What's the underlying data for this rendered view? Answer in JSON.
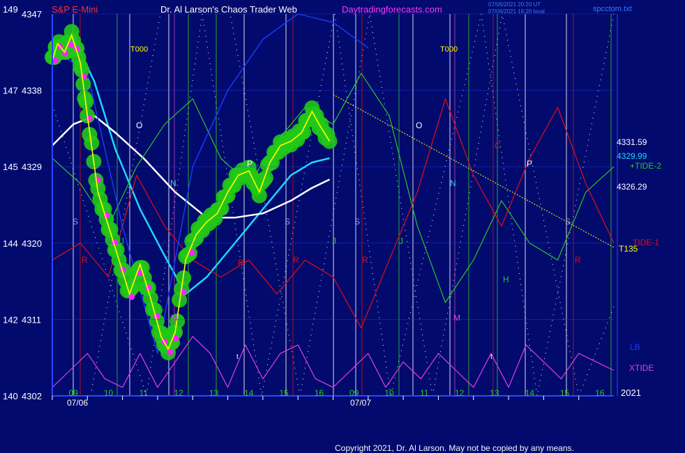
{
  "header": {
    "instrument": "S&P E-Mini",
    "author": "Dr. Al Larson's Chaos Trader Web",
    "site": "Daytradingforecasts.com",
    "timestamp_line1": "07/06/2021 20:20 UT",
    "timestamp_line2": "07/06/2021 16:20 local",
    "file": "spcctom.txt"
  },
  "copyright": "Copyright 2021, Dr. Al Larson. May not be copied by any means.",
  "colors": {
    "background": "#020a6e",
    "price_line": "#ffff00",
    "cyan_ma": "#1fd7ff",
    "white_ma": "#ffffff",
    "tide1": "#e01010",
    "tide2": "#28c828",
    "xtide": "#e040e0",
    "lb": "#1a3cff",
    "trend": "#ffff00",
    "green_glow": "#22c818",
    "magenta_dot": "#ff22ff"
  },
  "chart_data": {
    "type": "line",
    "title": "S&P E-Mini",
    "y_left_outer_ticks": [
      "149",
      "147",
      "145",
      "144",
      "142",
      "140"
    ],
    "y_left_inner_ticks": [
      4347,
      4338,
      4329,
      4320,
      4311,
      4302
    ],
    "ylim": [
      4302,
      4347
    ],
    "hour_ticks": [
      "09",
      "10",
      "11",
      "12",
      "13",
      "14",
      "15",
      "16",
      "09",
      "10",
      "11",
      "12",
      "13",
      "14",
      "15",
      "16"
    ],
    "date_labels": [
      "07/06",
      "07/07"
    ],
    "year_label": "2021",
    "value_labels": [
      {
        "text": "4331.59",
        "color": "#ffffff"
      },
      {
        "text": "4329.99",
        "color": "#1fd7ff"
      },
      {
        "text": "4326.29",
        "color": "#ffffff"
      }
    ],
    "legend": [
      {
        "label": "+TIDE-2",
        "color": "#28c828"
      },
      {
        "label": "TIDE-1",
        "color": "#e01010"
      },
      {
        "label": "T135",
        "color": "#ffff00"
      },
      {
        "label": "LB",
        "color": "#1a3cff"
      },
      {
        "label": "XTIDE",
        "color": "#e040e0"
      }
    ],
    "markers": [
      {
        "text": "T000",
        "color": "#ffff00"
      },
      {
        "text": "T000",
        "color": "#ffff00"
      },
      {
        "text": "O",
        "color": "#ffffff"
      },
      {
        "text": "O",
        "color": "#ffffff"
      },
      {
        "text": "P",
        "color": "#ffffff"
      },
      {
        "text": "P",
        "color": "#ffffff"
      },
      {
        "text": "N",
        "color": "#1fd7ff"
      },
      {
        "text": "N",
        "color": "#1fd7ff"
      },
      {
        "text": "S",
        "color": "#8a9cff"
      },
      {
        "text": "S",
        "color": "#8a9cff"
      },
      {
        "text": "S",
        "color": "#8a9cff"
      },
      {
        "text": "S",
        "color": "#8a9cff"
      },
      {
        "text": "J",
        "color": "#28c828"
      },
      {
        "text": "J",
        "color": "#28c828"
      },
      {
        "text": "J",
        "color": "#28c828"
      },
      {
        "text": "R",
        "color": "#e01010"
      },
      {
        "text": "R",
        "color": "#e01010"
      },
      {
        "text": "R",
        "color": "#e01010"
      },
      {
        "text": "R",
        "color": "#e01010"
      },
      {
        "text": "R",
        "color": "#e01010"
      },
      {
        "text": "C",
        "color": "#e01010"
      },
      {
        "text": "M",
        "color": "#e040e0"
      },
      {
        "text": "M",
        "color": "#e040e0"
      },
      {
        "text": "H",
        "color": "#28c828"
      },
      {
        "text": "t",
        "color": "#ffffff"
      },
      {
        "text": "t",
        "color": "#ffffff"
      }
    ],
    "price_series": {
      "name": "ES price",
      "x": [
        0.0,
        0.15,
        0.35,
        0.55,
        0.8,
        1.0,
        1.3,
        1.6,
        1.9,
        2.2,
        2.5,
        2.8,
        3.1,
        3.3,
        3.5,
        3.8,
        4.1,
        4.4,
        4.7,
        5.0,
        5.3,
        5.6,
        5.9,
        6.2,
        6.5,
        6.8,
        7.1,
        7.4,
        7.6,
        7.9
      ],
      "values": [
        4341.5,
        4343.5,
        4342.5,
        4344.5,
        4341.2,
        4335.0,
        4326.0,
        4322.0,
        4318.0,
        4314.0,
        4317.5,
        4313.5,
        4309.0,
        4307.5,
        4309.5,
        4318.0,
        4321.0,
        4322.5,
        4323.5,
        4326.0,
        4328.0,
        4328.5,
        4326.0,
        4329.5,
        4331.5,
        4332.0,
        4333.0,
        4335.5,
        4334.0,
        4332.0
      ]
    },
    "series": [
      {
        "name": "Cyan MA",
        "x": [
          0.0,
          0.8,
          1.2,
          1.8,
          2.5,
          3.2,
          3.8,
          4.4,
          5.0,
          5.6,
          6.2,
          6.8,
          7.4,
          7.9
        ],
        "values": [
          4342.0,
          4342.5,
          4339.0,
          4331.0,
          4324.0,
          4318.5,
          4314.0,
          4316.0,
          4319.0,
          4322.0,
          4325.0,
          4328.0,
          4329.5,
          4330.0
        ]
      },
      {
        "name": "White MA",
        "x": [
          0.0,
          0.6,
          1.2,
          1.8,
          2.6,
          3.5,
          4.4,
          5.2,
          6.0,
          6.8,
          7.4,
          7.9
        ],
        "values": [
          4331.5,
          4334.0,
          4335.0,
          4333.0,
          4330.0,
          4326.0,
          4323.0,
          4323.0,
          4323.5,
          4325.0,
          4326.5,
          4327.5
        ]
      },
      {
        "name": "+TIDE-2",
        "x": [
          0.0,
          0.8,
          1.6,
          2.4,
          3.2,
          4.0,
          4.8,
          5.6,
          6.4,
          7.2,
          8.0,
          8.8,
          9.6,
          10.4,
          11.2,
          12.0,
          12.8,
          13.6,
          14.4,
          15.2,
          16.0
        ],
        "values": [
          4330,
          4327,
          4322,
          4329,
          4334,
          4337,
          4330,
          4327,
          4332,
          4336,
          4334,
          4340,
          4335,
          4322,
          4313,
          4318,
          4325,
          4320,
          4318,
          4326,
          4329
        ]
      },
      {
        "name": "TIDE-1",
        "x": [
          0.0,
          0.8,
          1.6,
          2.4,
          3.2,
          4.0,
          4.8,
          5.6,
          6.4,
          7.2,
          8.0,
          8.8,
          9.6,
          10.4,
          11.2,
          12.0,
          12.8,
          13.6,
          14.4,
          15.2,
          16.0
        ],
        "values": [
          4318,
          4320,
          4316,
          4328,
          4322,
          4318,
          4316,
          4318,
          4314,
          4318,
          4316,
          4310,
          4318,
          4326,
          4337,
          4328,
          4322,
          4330,
          4336,
          4327,
          4320
        ]
      },
      {
        "name": "XTIDE",
        "x": [
          0.0,
          0.5,
          1.0,
          1.5,
          2.0,
          2.5,
          3.0,
          3.5,
          4.0,
          4.5,
          5.0,
          5.5,
          6.0,
          6.5,
          7.0,
          7.5,
          8.0,
          8.5,
          9.0,
          9.5,
          10.0,
          10.5,
          11.0,
          11.5,
          12.0,
          12.5,
          13.0,
          13.5,
          14.0,
          14.5,
          15.0,
          15.5,
          16.0
        ],
        "values": [
          4303,
          4305,
          4307,
          4304,
          4303,
          4307,
          4303,
          4306,
          4309,
          4307,
          4303,
          4308,
          4304,
          4307,
          4308,
          4304,
          4303,
          4305,
          4307,
          4303,
          4306,
          4304,
          4307,
          4305,
          4303,
          4307,
          4303,
          4308,
          4306,
          4304,
          4307,
          4306,
          4305
        ]
      },
      {
        "name": "LB",
        "x": [
          0.0,
          1.0,
          2.0,
          3.0,
          4.0,
          5.0,
          6.0,
          7.0,
          8.0,
          9.0
        ],
        "values": [
          4343,
          4340,
          4322,
          4307,
          4329,
          4338,
          4344,
          4347,
          4346,
          4343
        ]
      },
      {
        "name": "T135",
        "x": [
          8.0,
          16.0
        ],
        "values": [
          4337.5,
          4319.5
        ]
      }
    ]
  }
}
